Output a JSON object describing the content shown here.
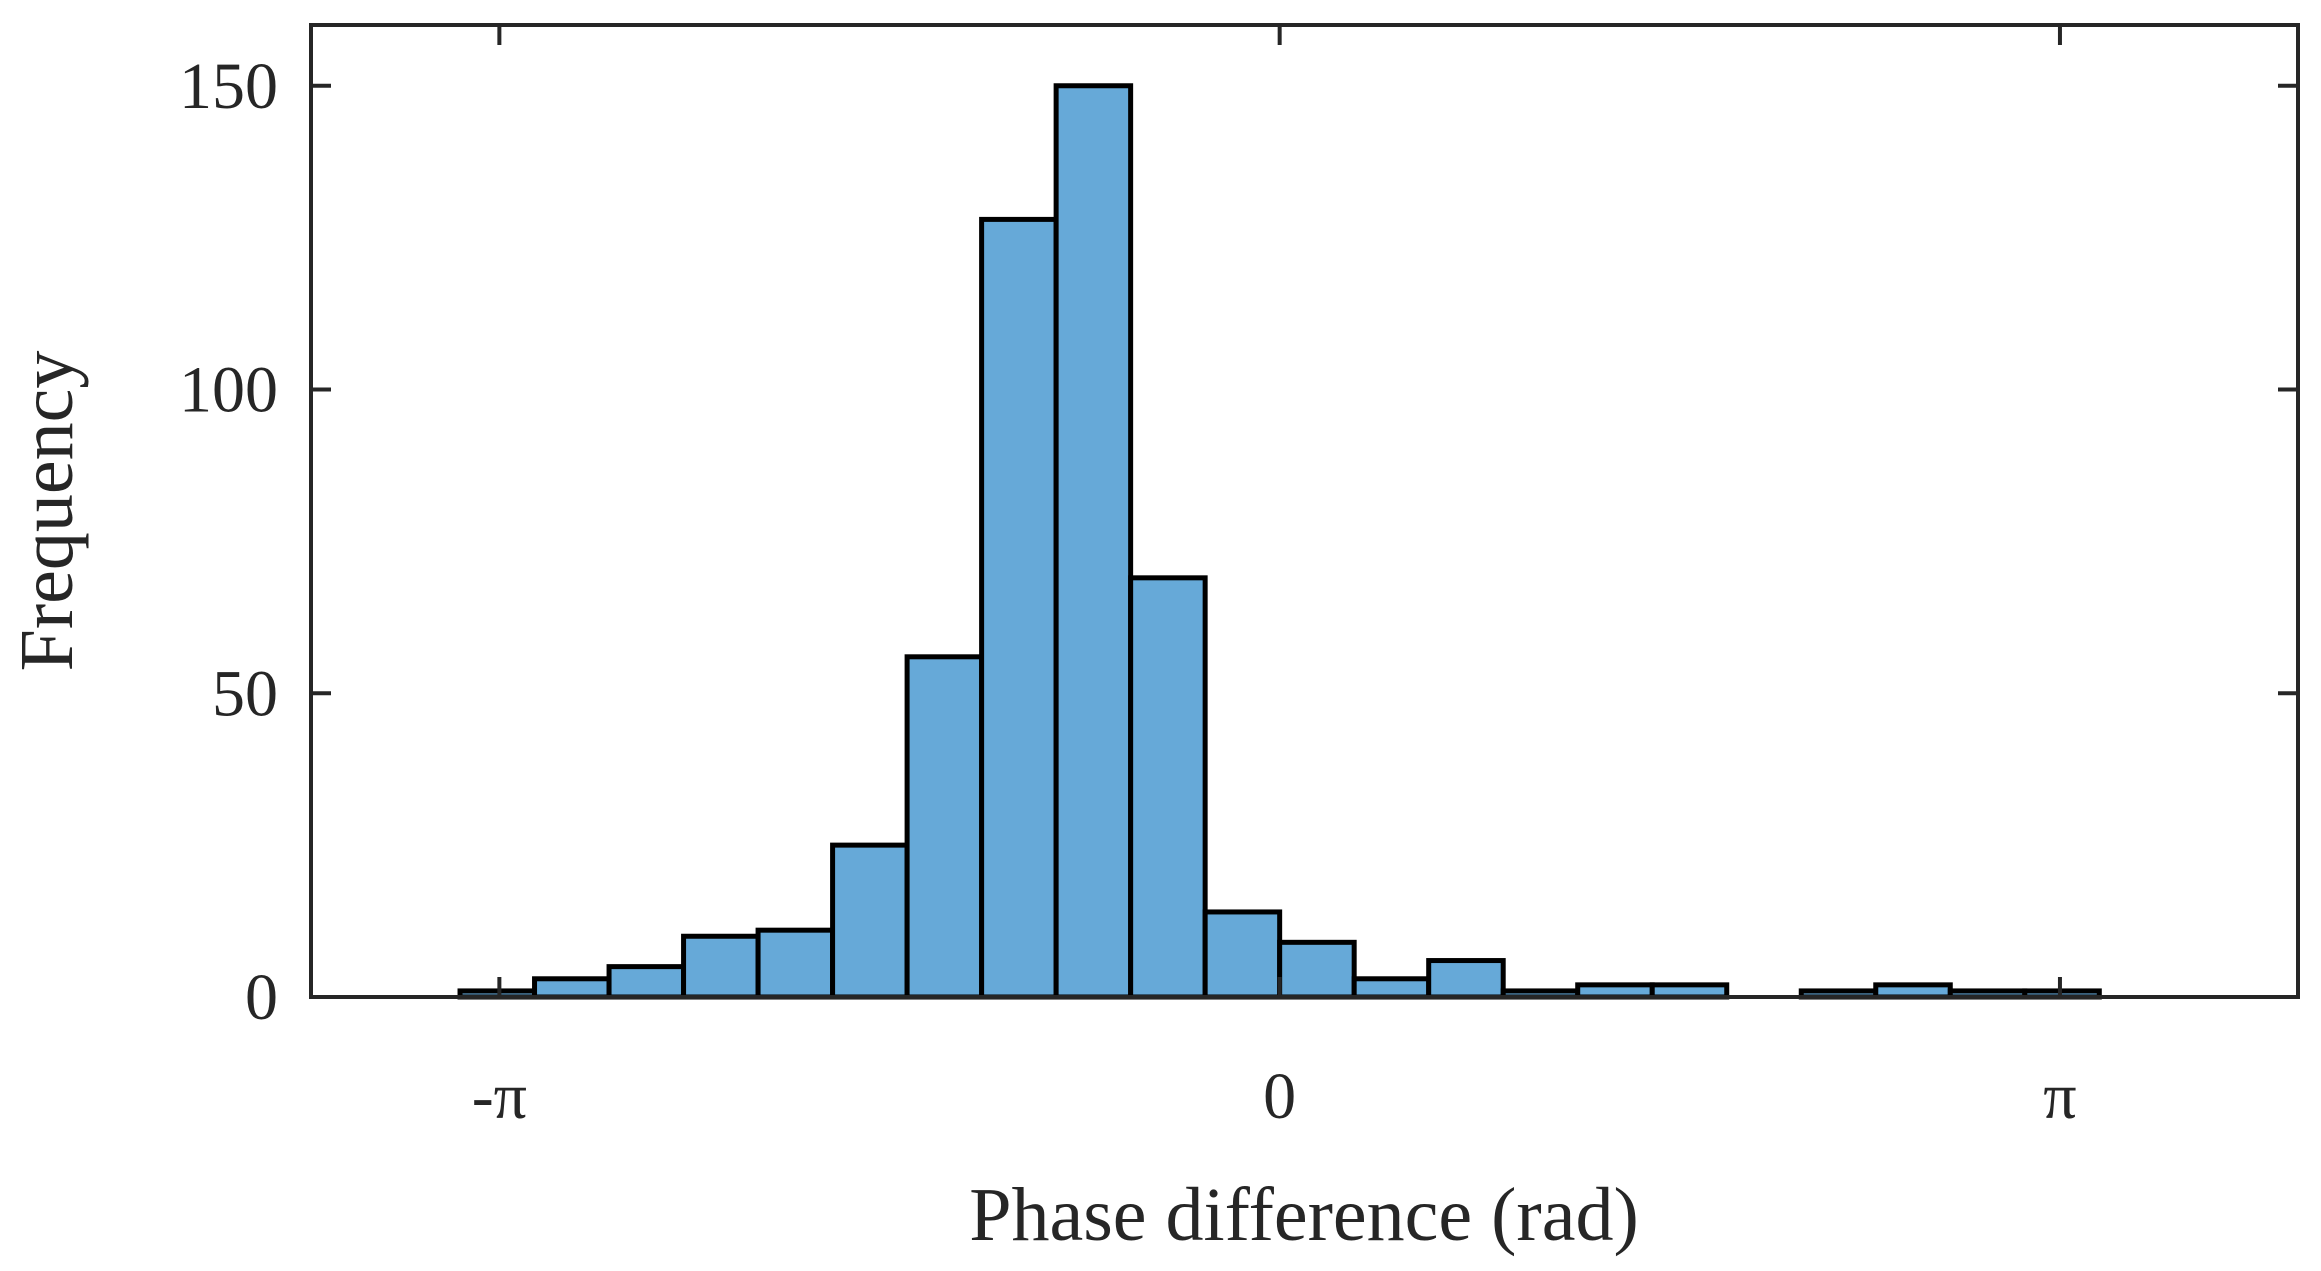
{
  "chart_data": {
    "type": "bar",
    "subtype": "histogram",
    "xlabel": "Phase difference (rad)",
    "ylabel": "Frequency",
    "xlim": [
      -3.9,
      4.1
    ],
    "ylim": [
      0,
      160
    ],
    "bar_color": "#66A9D8",
    "edge_color": "#000000",
    "x_ticks": [
      {
        "value": -3.14159,
        "label": "-π"
      },
      {
        "value": 0,
        "label": "0"
      },
      {
        "value": 3.14159,
        "label": "π"
      }
    ],
    "y_ticks": [
      {
        "value": 0,
        "label": "0"
      },
      {
        "value": 50,
        "label": "50"
      },
      {
        "value": 100,
        "label": "100"
      },
      {
        "value": 150,
        "label": "150"
      }
    ],
    "bin_width": 0.3,
    "bins": [
      {
        "start": -3.3,
        "count": 1
      },
      {
        "start": -3.0,
        "count": 3
      },
      {
        "start": -2.7,
        "count": 5
      },
      {
        "start": -2.4,
        "count": 10
      },
      {
        "start": -2.1,
        "count": 11
      },
      {
        "start": -1.8,
        "count": 25
      },
      {
        "start": -1.5,
        "count": 56
      },
      {
        "start": -1.2,
        "count": 128
      },
      {
        "start": -0.9,
        "count": 150
      },
      {
        "start": -0.6,
        "count": 69
      },
      {
        "start": -0.3,
        "count": 14
      },
      {
        "start": 0.0,
        "count": 9
      },
      {
        "start": 0.3,
        "count": 3
      },
      {
        "start": 0.6,
        "count": 6
      },
      {
        "start": 0.9,
        "count": 1
      },
      {
        "start": 1.2,
        "count": 2
      },
      {
        "start": 1.5,
        "count": 2
      },
      {
        "start": 2.1,
        "count": 1
      },
      {
        "start": 2.4,
        "count": 2
      },
      {
        "start": 2.7,
        "count": 1
      },
      {
        "start": 3.0,
        "count": 1
      }
    ]
  }
}
